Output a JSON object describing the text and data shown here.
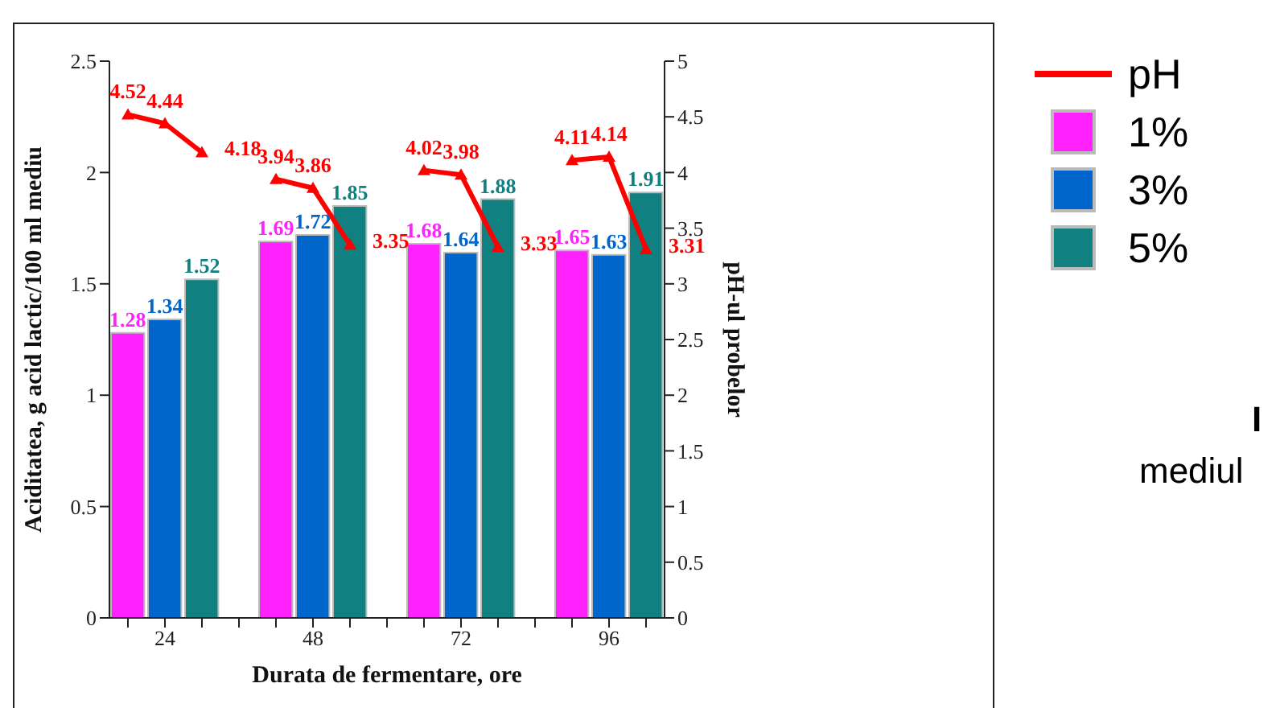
{
  "chart_data": {
    "type": "bar",
    "xlabel": "Durata de fermentare, ore",
    "ylabel": "Aciditatea, g acid lactic/100 ml mediu",
    "y2label": "pH-ul probelor",
    "categories": [
      null,
      "24",
      null,
      null,
      null,
      "48",
      null,
      null,
      null,
      "72",
      null,
      null,
      null,
      "96",
      null
    ],
    "series": [
      {
        "name": "pH",
        "type": "line",
        "axis": "y2",
        "color": "#ff0000",
        "values": [
          4.52,
          4.44,
          4.18,
          null,
          3.94,
          3.86,
          3.35,
          null,
          4.02,
          3.98,
          3.33,
          null,
          4.11,
          4.14,
          3.31
        ]
      },
      {
        "name": "1%",
        "color": "#ff22ff",
        "values": [
          1.28,
          null,
          null,
          null,
          1.69,
          null,
          null,
          null,
          1.68,
          null,
          null,
          null,
          1.65,
          null,
          null
        ]
      },
      {
        "name": "3%",
        "color": "#0066cc",
        "values": [
          null,
          1.34,
          null,
          null,
          null,
          1.72,
          null,
          null,
          null,
          1.64,
          null,
          null,
          null,
          1.63,
          null
        ]
      },
      {
        "name": "5%",
        "color": "#108080",
        "values": [
          null,
          null,
          1.52,
          null,
          null,
          null,
          1.85,
          null,
          null,
          null,
          1.88,
          null,
          null,
          null,
          1.91
        ]
      }
    ],
    "ylim": [
      0,
      2.5
    ],
    "yticks": [
      0,
      0.5,
      1,
      1.5,
      2,
      2.5
    ],
    "y2lim": [
      0,
      5
    ],
    "y2ticks": [
      0,
      0.5,
      1,
      1.5,
      2,
      2.5,
      3,
      3.5,
      4,
      4.5,
      5
    ],
    "marker": "triangle",
    "data_labels": true,
    "grid": false,
    "legend": "right",
    "annotations": [
      "I",
      "mediul"
    ]
  }
}
